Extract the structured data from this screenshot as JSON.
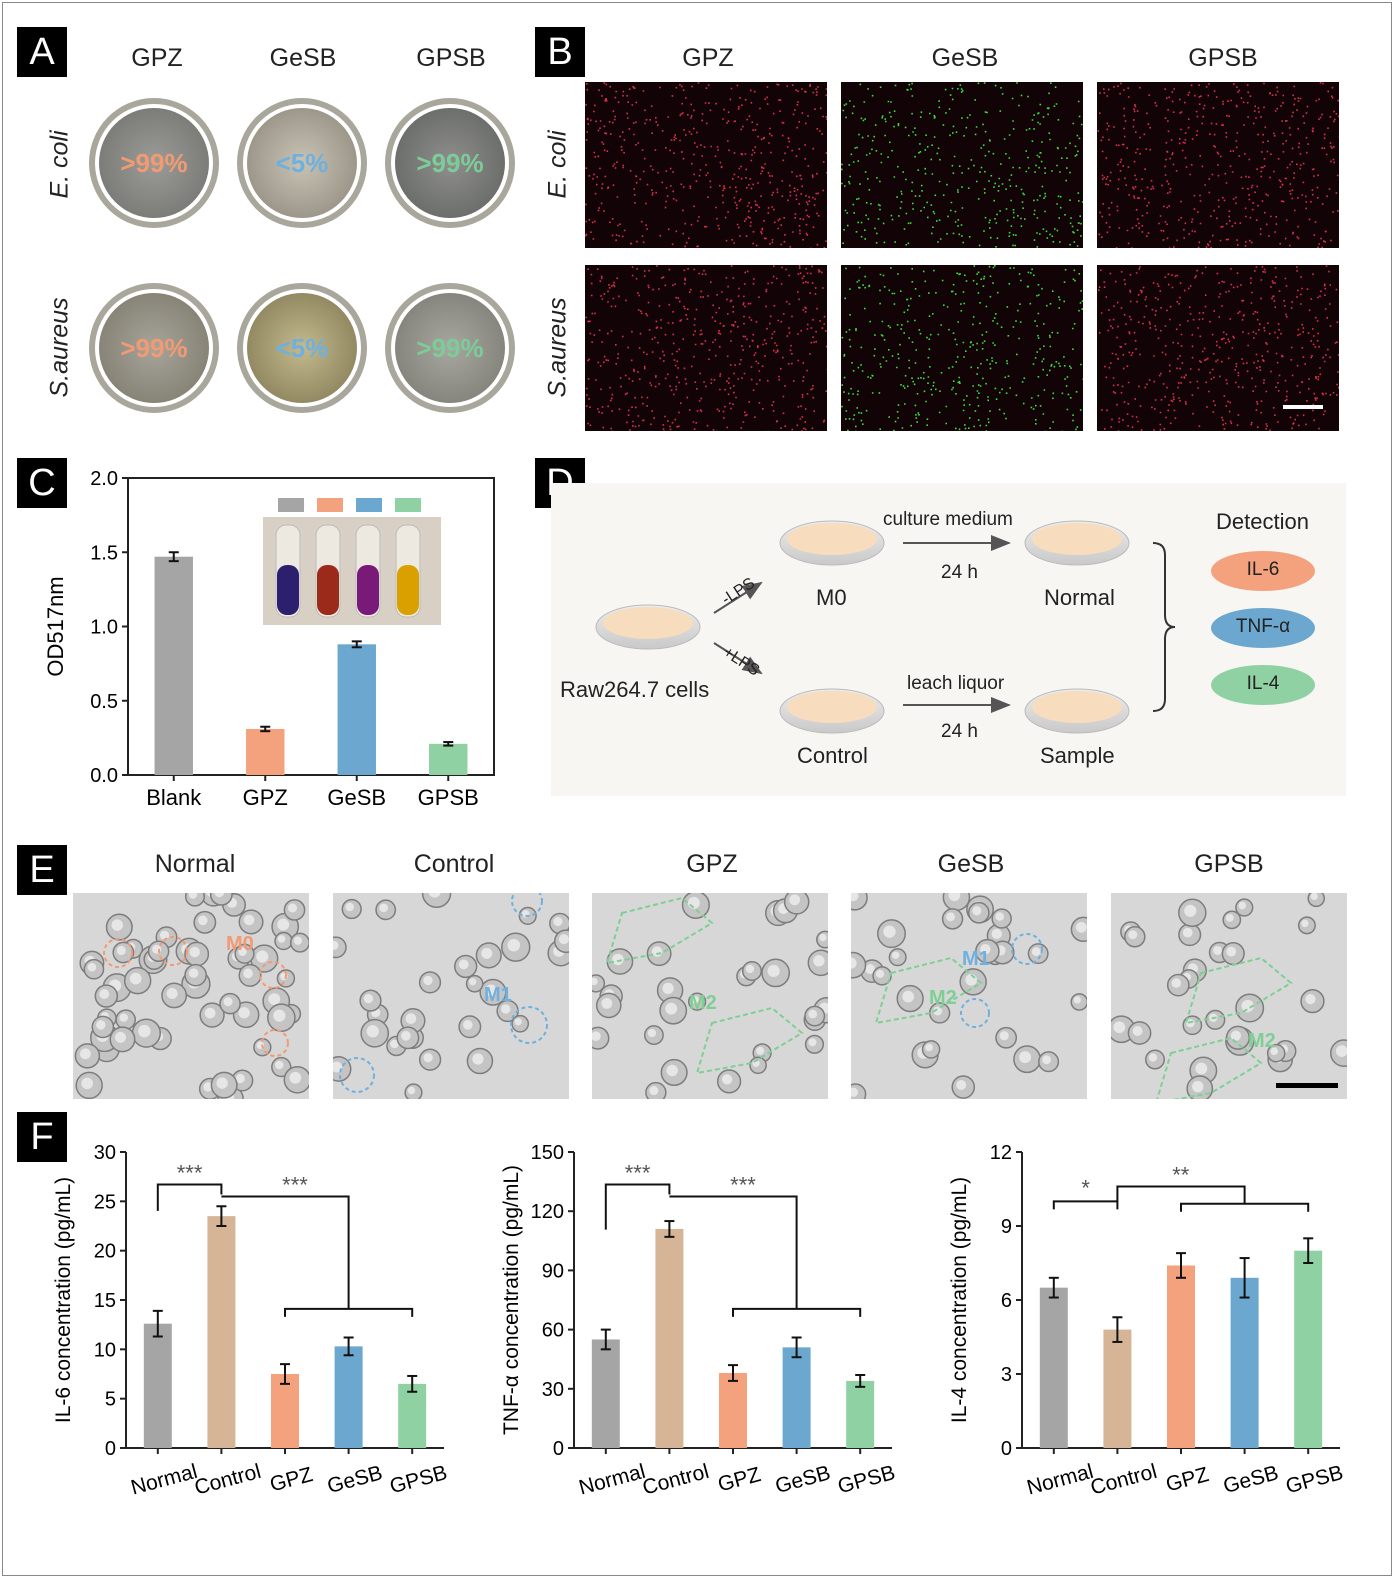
{
  "panel_labels": [
    "A",
    "B",
    "C",
    "D",
    "E",
    "F"
  ],
  "panel_a": {
    "columns": [
      "GPZ",
      "GeSB",
      "GPSB"
    ],
    "rows": [
      "E. coli",
      "S.aureus"
    ],
    "values": [
      [
        ">99%",
        "<5%",
        ">99%"
      ],
      [
        ">99%",
        "<5%",
        ">99%"
      ]
    ],
    "value_colors": [
      "#f29a73",
      "#6fb0de",
      "#7ccc9a"
    ]
  },
  "panel_b": {
    "columns": [
      "GPZ",
      "GeSB",
      "GPSB"
    ],
    "rows": [
      "E. coli",
      "S.aureus"
    ],
    "dot_colors": [
      "red",
      "green",
      "red"
    ]
  },
  "panel_c": {
    "chart_data": {
      "type": "bar",
      "categories": [
        "Blank",
        "GPZ",
        "GeSB",
        "GPSB"
      ],
      "values": [
        1.47,
        0.31,
        0.88,
        0.21
      ],
      "errors": [
        0.03,
        0.015,
        0.02,
        0.012
      ],
      "colors": [
        "#a5a5a5",
        "#f4a27d",
        "#6ba7cf",
        "#8fd1a3"
      ],
      "ylabel": "OD517nm",
      "ylim": [
        0,
        2.0
      ],
      "yticks": [
        "0.0",
        "0.5",
        "1.0",
        "1.5",
        "2.0"
      ],
      "inset_tube_colors": [
        "#2b1f6e",
        "#9b2a1a",
        "#7a1a78",
        "#d9a000"
      ]
    }
  },
  "panel_d": {
    "start": "Raw264.7 cells",
    "minus_lps": "-LPS",
    "plus_lps": "+LPS",
    "m0": "M0",
    "control": "Control",
    "normal": "Normal",
    "sample": "Sample",
    "culture_medium": "culture medium",
    "leach_liquor": "leach liquor",
    "time_top": "24 h",
    "time_bottom": "24 h",
    "detection_title": "Detection",
    "markers": [
      "IL-6",
      "TNF-α",
      "IL-4"
    ],
    "marker_colors": [
      "#f4a27d",
      "#6ba7cf",
      "#8fd1a3"
    ]
  },
  "panel_e": {
    "columns": [
      "Normal",
      "Control",
      "GPZ",
      "GeSB",
      "GPSB"
    ],
    "annotations": [
      "M0",
      "M1",
      "M2",
      "M2",
      "M1",
      "M2"
    ]
  },
  "panel_f": {
    "chart_data": [
      {
        "type": "bar",
        "categories": [
          "Normal",
          "Control",
          "GPZ",
          "GeSB",
          "GPSB"
        ],
        "values": [
          12.6,
          23.5,
          7.5,
          10.3,
          6.5
        ],
        "errors": [
          1.3,
          1.0,
          1.0,
          0.9,
          0.8
        ],
        "colors": [
          "#a5a5a5",
          "#d6b597",
          "#f4a27d",
          "#6ba7cf",
          "#8fd1a3"
        ],
        "ylabel": "IL-6 concentration (pg/mL)",
        "ylim": [
          0,
          30
        ],
        "yticks": [
          "0",
          "5",
          "10",
          "15",
          "20",
          "25",
          "30"
        ],
        "significance": [
          "***",
          "***"
        ]
      },
      {
        "type": "bar",
        "categories": [
          "Normal",
          "Control",
          "GPZ",
          "GeSB",
          "GPSB"
        ],
        "values": [
          55,
          111,
          38,
          51,
          34
        ],
        "errors": [
          5,
          4,
          4,
          5,
          3
        ],
        "colors": [
          "#a5a5a5",
          "#d6b597",
          "#f4a27d",
          "#6ba7cf",
          "#8fd1a3"
        ],
        "ylabel": "TNF-α concentration (pg/mL)",
        "ylim": [
          0,
          150
        ],
        "yticks": [
          "0",
          "30",
          "60",
          "90",
          "120",
          "150"
        ],
        "significance": [
          "***",
          "***"
        ]
      },
      {
        "type": "bar",
        "categories": [
          "Normal",
          "Control",
          "GPZ",
          "GeSB",
          "GPSB"
        ],
        "values": [
          6.5,
          4.8,
          7.4,
          6.9,
          8.0
        ],
        "errors": [
          0.4,
          0.5,
          0.5,
          0.8,
          0.5
        ],
        "colors": [
          "#a5a5a5",
          "#d6b597",
          "#f4a27d",
          "#6ba7cf",
          "#8fd1a3"
        ],
        "ylabel": "IL-4 concentration (pg/mL)",
        "ylim": [
          0,
          12
        ],
        "yticks": [
          "0",
          "3",
          "6",
          "9",
          "12"
        ],
        "significance": [
          "*",
          "**"
        ]
      }
    ]
  }
}
